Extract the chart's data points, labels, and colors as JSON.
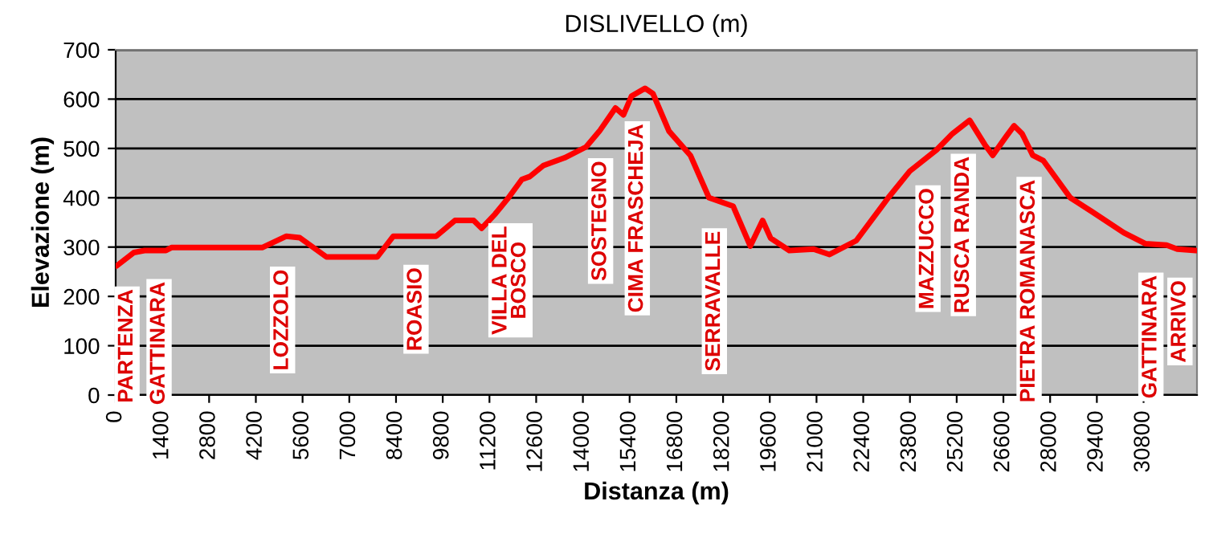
{
  "chart_data": {
    "type": "line",
    "title": "DISLIVELLO (m)",
    "xlabel": "Distanza (m)",
    "ylabel": "Elevazione (m)",
    "xlim": [
      0,
      32400
    ],
    "xticks": [
      0,
      1400,
      2800,
      4200,
      5600,
      7000,
      8400,
      9800,
      11200,
      12600,
      14000,
      15400,
      16800,
      18200,
      19600,
      21000,
      22400,
      23800,
      25200,
      26600,
      28000,
      29400,
      30800
    ],
    "ylim": [
      0,
      700
    ],
    "yticks": [
      0,
      100,
      200,
      300,
      400,
      500,
      600,
      700
    ],
    "grid": "y",
    "series": [
      {
        "color": "#ff0000",
        "x": [
          30,
          545,
          865,
          1505,
          1670,
          4390,
          5115,
          5515,
          6315,
          7840,
          8320,
          9605,
          10165,
          10725,
          10965,
          11370,
          11770,
          12170,
          12410,
          12810,
          13450,
          14095,
          14495,
          14975,
          15215,
          15455,
          15860,
          16100,
          16580,
          17220,
          17780,
          18500,
          19015,
          19385,
          19625,
          20185,
          20910,
          21390,
          22190,
          23150,
          23795,
          24595,
          25075,
          25590,
          26040,
          26280,
          26680,
          26920,
          27160,
          27480,
          27800,
          28605,
          29250,
          30210,
          30850,
          31490,
          31810,
          32370
        ],
        "values": [
          262,
          289,
          293,
          293,
          299,
          299,
          322,
          319,
          280,
          280,
          322,
          322,
          354,
          354,
          338,
          367,
          400,
          437,
          443,
          465,
          481,
          503,
          535,
          582,
          568,
          606,
          622,
          611,
          535,
          486,
          400,
          383,
          302,
          354,
          318,
          293,
          296,
          285,
          313,
          400,
          454,
          497,
          530,
          557,
          508,
          486,
          524,
          546,
          530,
          486,
          475,
          400,
          372,
          329,
          307,
          304,
          296,
          293
        ]
      }
    ],
    "annotations": [
      {
        "text": "PARTENZA",
        "x": 340,
        "y": 278
      },
      {
        "text": "GATTINARA",
        "x": 1300,
        "y": 293
      },
      {
        "text": "LOZZOLO",
        "x": 5000,
        "y": 318
      },
      {
        "text": "ROASIO",
        "x": 9000,
        "y": 322
      },
      {
        "text": "VILLA DEL\nBOSCO",
        "x": 11830,
        "y": 406
      },
      {
        "text": "SOSTEGNO",
        "x": 14530,
        "y": 538
      },
      {
        "text": "CIMA FRASCHEJA",
        "x": 15630,
        "y": 613
      },
      {
        "text": "SERRAVALLE",
        "x": 17940,
        "y": 396
      },
      {
        "text": "MAZZUCCO",
        "x": 24340,
        "y": 483
      },
      {
        "text": "RUSCA RANDA",
        "x": 25400,
        "y": 547
      },
      {
        "text": "PIETRA ROMANASCA",
        "x": 27370,
        "y": 500
      },
      {
        "text": "GATTINARA",
        "x": 31020,
        "y": 306
      },
      {
        "text": "ARRIVO",
        "x": 31890,
        "y": 296
      }
    ]
  }
}
